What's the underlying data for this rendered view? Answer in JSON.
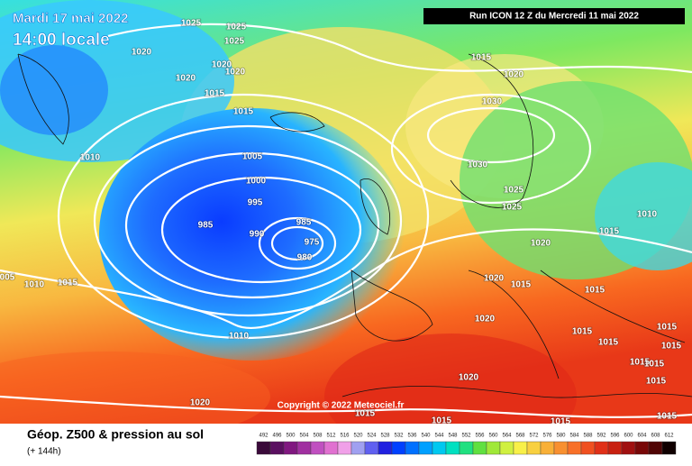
{
  "header": {
    "date": "Mardi 17 mai 2022",
    "time": "14:00 locale",
    "run": "Run ICON 12 Z du Mercredi 11 mai 2022"
  },
  "copyright": "Copyright © 2022 Meteociel.fr",
  "footer": {
    "title": "Géop. Z500 & pression au sol",
    "subtitle": "(+ 144h)"
  },
  "isobar_labels": [
    "1025",
    "1025",
    "1025",
    "1020",
    "1020",
    "1020",
    "1020",
    "1015",
    "1015",
    "1015",
    "1020",
    "1030",
    "1010",
    "1005",
    "1000",
    "995",
    "985",
    "990",
    "985",
    "975",
    "980",
    "1030",
    "1025",
    "1025",
    "1020",
    "1010",
    "1015",
    "005",
    "1010",
    "1015",
    "1020",
    "1015",
    "1015",
    "1020",
    "1015",
    "1015",
    "1015",
    "1015",
    "1015",
    "1015",
    "1015",
    "1020",
    "1010",
    "1020",
    "1015",
    "1015",
    "1015",
    "1015"
  ],
  "legend": {
    "labels": [
      492,
      496,
      500,
      504,
      508,
      512,
      516,
      520,
      524,
      528,
      532,
      536,
      540,
      544,
      548,
      552,
      556,
      560,
      564,
      568,
      572,
      576,
      580,
      584,
      588,
      592,
      596,
      600,
      604,
      608,
      612
    ],
    "colors": [
      "#3a0a3a",
      "#5a1060",
      "#801880",
      "#a030a0",
      "#c050c0",
      "#e070d0",
      "#f0a0e8",
      "#a0a0f0",
      "#6060f0",
      "#2020e0",
      "#0040ff",
      "#0070ff",
      "#00a0ff",
      "#00c8f0",
      "#00e0c0",
      "#20e080",
      "#60e040",
      "#a0e838",
      "#d0f040",
      "#f8f048",
      "#f8d040",
      "#f8b038",
      "#f89030",
      "#f87028",
      "#f05020",
      "#e03018",
      "#c82010",
      "#a01010",
      "#780808",
      "#500404",
      "#100000"
    ]
  }
}
